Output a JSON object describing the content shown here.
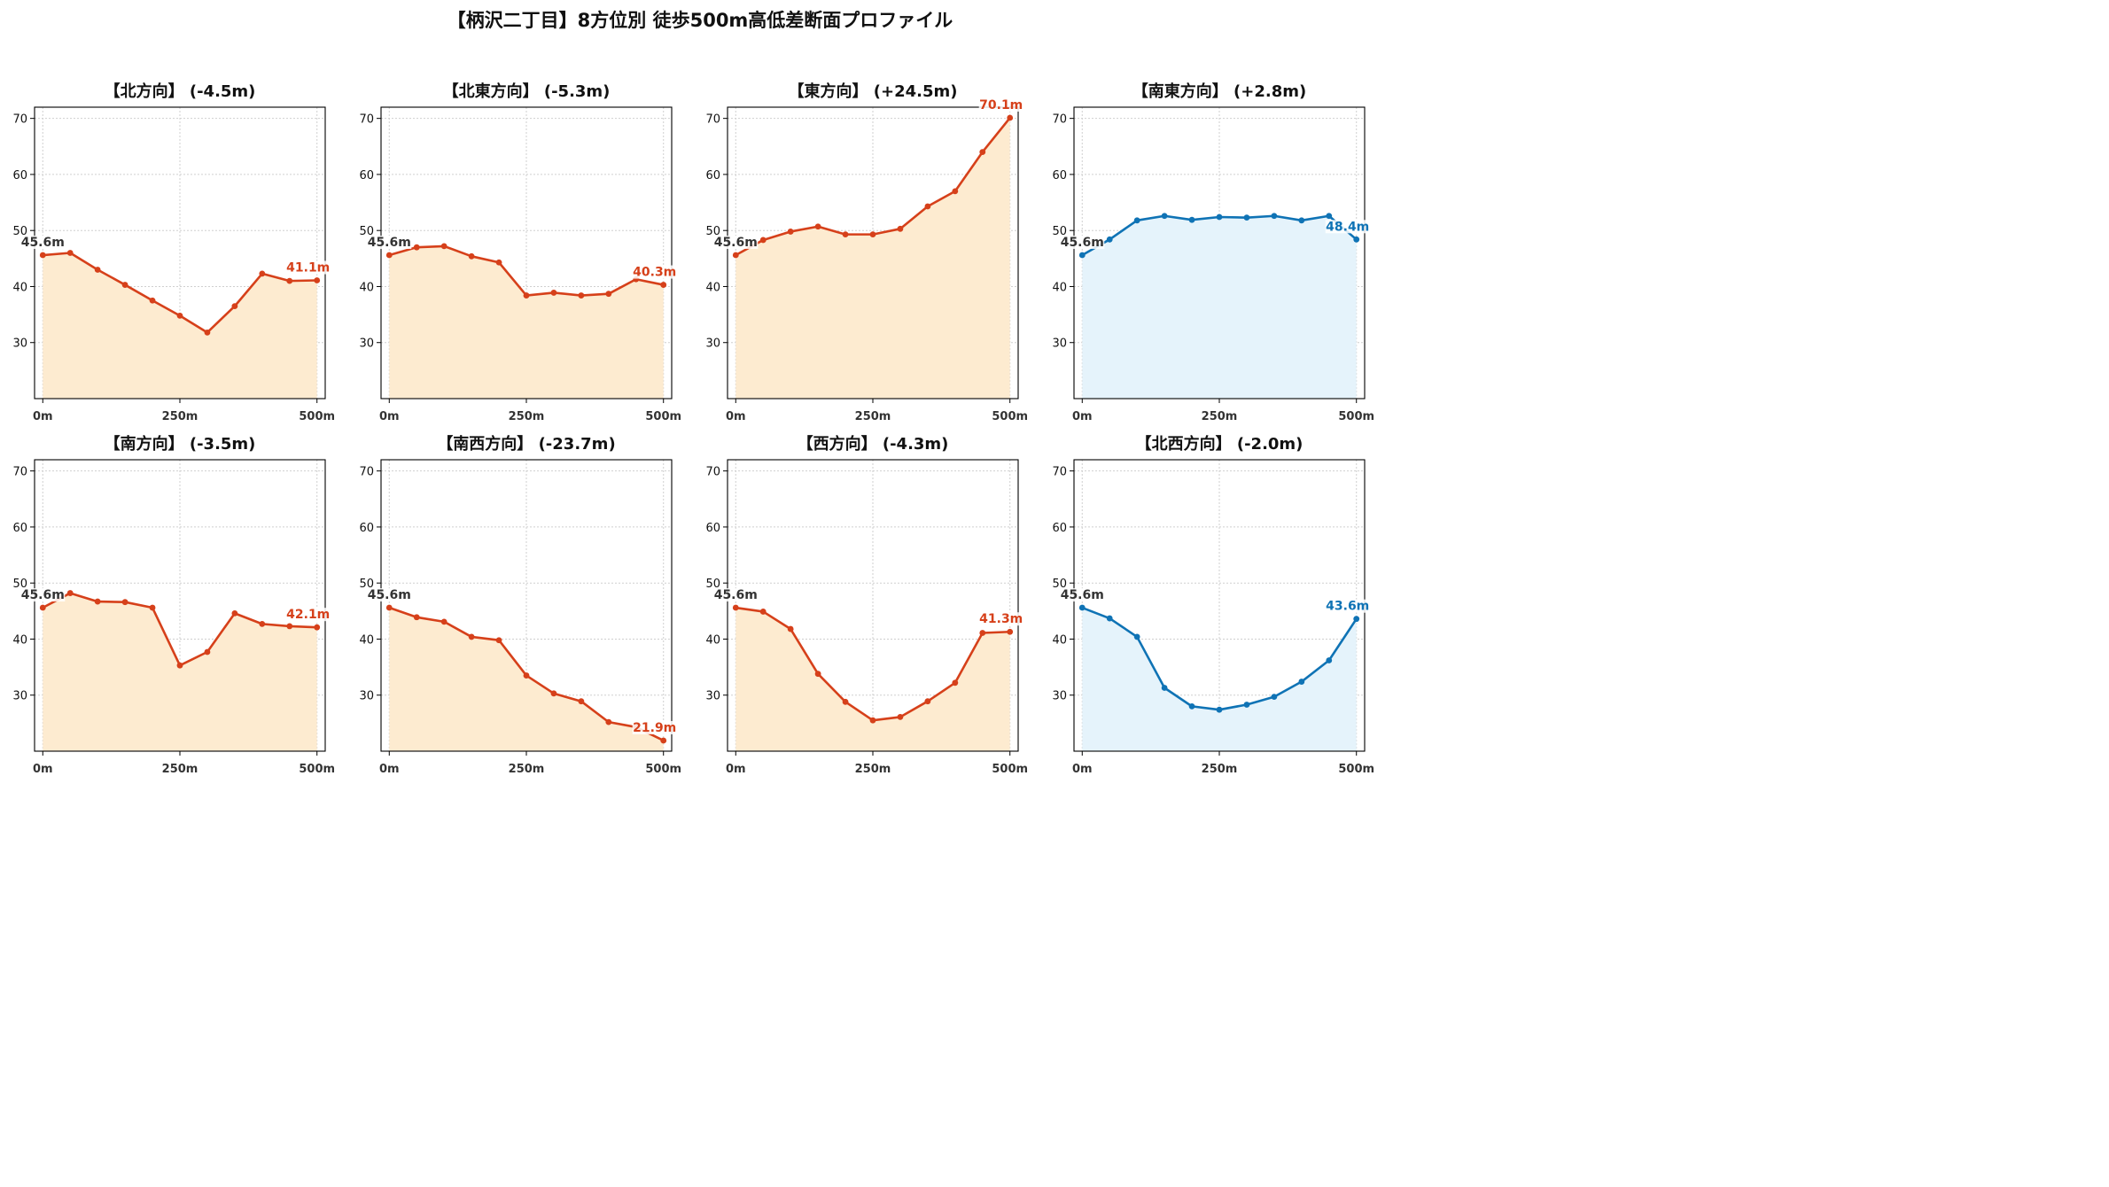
{
  "figure": {
    "title": "【柄沢二丁目】8方位別 徒歩500m高低差断面プロファイル"
  },
  "colors": {
    "down_line": "#d6401a",
    "down_fill": "#fdebd0",
    "up_line": "#0f73b5",
    "up_fill": "#e5f3fb",
    "start_label": "#333333"
  },
  "chart_data": [
    {
      "type": "area",
      "title": "【北方向】 (-4.5m)",
      "x": [
        0,
        50,
        100,
        150,
        200,
        250,
        300,
        350,
        400,
        450,
        500
      ],
      "values": [
        45.6,
        46.0,
        43.0,
        40.3,
        37.5,
        34.8,
        31.8,
        36.5,
        42.3,
        41.0,
        41.1
      ],
      "color": "down",
      "start_label": "45.6m",
      "end_label": "41.1m",
      "x_ticks": [
        "0m",
        "250m",
        "500m"
      ],
      "y_ticks": [
        30,
        40,
        50,
        60,
        70
      ],
      "xlim": [
        -15,
        515
      ],
      "ylim": [
        20,
        72
      ],
      "grid": true
    },
    {
      "type": "area",
      "title": "【北東方向】 (-5.3m)",
      "x": [
        0,
        50,
        100,
        150,
        200,
        250,
        300,
        350,
        400,
        450,
        500
      ],
      "values": [
        45.6,
        47.0,
        47.2,
        45.4,
        44.3,
        38.4,
        38.9,
        38.4,
        38.7,
        41.3,
        40.3
      ],
      "color": "down",
      "start_label": "45.6m",
      "end_label": "40.3m",
      "x_ticks": [
        "0m",
        "250m",
        "500m"
      ],
      "y_ticks": [
        30,
        40,
        50,
        60,
        70
      ],
      "xlim": [
        -15,
        515
      ],
      "ylim": [
        20,
        72
      ],
      "grid": true
    },
    {
      "type": "area",
      "title": "【東方向】 (+24.5m)",
      "x": [
        0,
        50,
        100,
        150,
        200,
        250,
        300,
        350,
        400,
        450,
        500
      ],
      "values": [
        45.6,
        48.3,
        49.8,
        50.7,
        49.3,
        49.3,
        50.3,
        54.3,
        57.0,
        64.0,
        70.1
      ],
      "color": "down",
      "start_label": "45.6m",
      "end_label": "70.1m",
      "x_ticks": [
        "0m",
        "250m",
        "500m"
      ],
      "y_ticks": [
        30,
        40,
        50,
        60,
        70
      ],
      "xlim": [
        -15,
        515
      ],
      "ylim": [
        20,
        72
      ],
      "grid": true
    },
    {
      "type": "area",
      "title": "【南東方向】 (+2.8m)",
      "x": [
        0,
        50,
        100,
        150,
        200,
        250,
        300,
        350,
        400,
        450,
        500
      ],
      "values": [
        45.6,
        48.4,
        51.8,
        52.6,
        51.9,
        52.4,
        52.3,
        52.6,
        51.8,
        52.6,
        48.4
      ],
      "color": "up",
      "start_label": "45.6m",
      "end_label": "48.4m",
      "x_ticks": [
        "0m",
        "250m",
        "500m"
      ],
      "y_ticks": [
        30,
        40,
        50,
        60,
        70
      ],
      "xlim": [
        -15,
        515
      ],
      "ylim": [
        20,
        72
      ],
      "grid": true
    },
    {
      "type": "area",
      "title": "【南方向】 (-3.5m)",
      "x": [
        0,
        50,
        100,
        150,
        200,
        250,
        300,
        350,
        400,
        450,
        500
      ],
      "values": [
        45.6,
        48.2,
        46.7,
        46.6,
        45.6,
        35.3,
        37.7,
        44.6,
        42.7,
        42.3,
        42.1
      ],
      "color": "down",
      "start_label": "45.6m",
      "end_label": "42.1m",
      "x_ticks": [
        "0m",
        "250m",
        "500m"
      ],
      "y_ticks": [
        30,
        40,
        50,
        60,
        70
      ],
      "xlim": [
        -15,
        515
      ],
      "ylim": [
        20,
        72
      ],
      "grid": true
    },
    {
      "type": "area",
      "title": "【南西方向】 (-23.7m)",
      "x": [
        0,
        50,
        100,
        150,
        200,
        250,
        300,
        350,
        400,
        450,
        500
      ],
      "values": [
        45.6,
        43.9,
        43.1,
        40.4,
        39.8,
        33.5,
        30.3,
        28.9,
        25.2,
        24.3,
        21.9
      ],
      "color": "down",
      "start_label": "45.6m",
      "end_label": "21.9m",
      "x_ticks": [
        "0m",
        "250m",
        "500m"
      ],
      "y_ticks": [
        30,
        40,
        50,
        60,
        70
      ],
      "xlim": [
        -15,
        515
      ],
      "ylim": [
        20,
        72
      ],
      "grid": true
    },
    {
      "type": "area",
      "title": "【西方向】 (-4.3m)",
      "x": [
        0,
        50,
        100,
        150,
        200,
        250,
        300,
        350,
        400,
        450,
        500
      ],
      "values": [
        45.6,
        44.9,
        41.8,
        33.8,
        28.8,
        25.5,
        26.1,
        28.9,
        32.2,
        41.1,
        41.3
      ],
      "color": "down",
      "start_label": "45.6m",
      "end_label": "41.3m",
      "x_ticks": [
        "0m",
        "250m",
        "500m"
      ],
      "y_ticks": [
        30,
        40,
        50,
        60,
        70
      ],
      "xlim": [
        -15,
        515
      ],
      "ylim": [
        20,
        72
      ],
      "grid": true
    },
    {
      "type": "area",
      "title": "【北西方向】 (-2.0m)",
      "x": [
        0,
        50,
        100,
        150,
        200,
        250,
        300,
        350,
        400,
        450,
        500
      ],
      "values": [
        45.6,
        43.7,
        40.4,
        31.3,
        28.0,
        27.4,
        28.3,
        29.7,
        32.4,
        36.2,
        43.6
      ],
      "color": "up",
      "start_label": "45.6m",
      "end_label": "43.6m",
      "x_ticks": [
        "0m",
        "250m",
        "500m"
      ],
      "y_ticks": [
        30,
        40,
        50,
        60,
        70
      ],
      "xlim": [
        -15,
        515
      ],
      "ylim": [
        20,
        72
      ],
      "grid": true
    }
  ]
}
